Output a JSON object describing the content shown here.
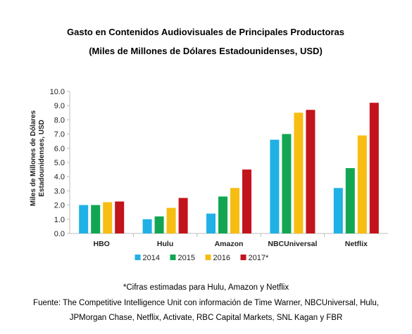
{
  "chart_data": {
    "type": "bar",
    "title": "Gasto en Contenidos Audiovisuales de Principales Productoras",
    "subtitle": "(Miles de Millones de Dólares Estadounidenses, USD)",
    "ylabel_line1": "Miles de Millones de Dólares",
    "ylabel_line2": "Estadounidenses, USD",
    "ylim": [
      0,
      10
    ],
    "yticks": [
      "0.0",
      "1.0",
      "2.0",
      "3.0",
      "4.0",
      "5.0",
      "6.0",
      "7.0",
      "8.0",
      "9.0",
      "10.0"
    ],
    "categories": [
      "HBO",
      "Hulu",
      "Amazon",
      "NBCUniversal",
      "Netflix"
    ],
    "series": [
      {
        "name": "2014",
        "color": "#1fb1e6",
        "values": [
          2.0,
          1.0,
          1.4,
          6.6,
          3.2
        ]
      },
      {
        "name": "2015",
        "color": "#12a652",
        "values": [
          2.0,
          1.2,
          2.6,
          7.0,
          4.6
        ]
      },
      {
        "name": "2016",
        "color": "#f7bd12",
        "values": [
          2.2,
          1.8,
          3.2,
          8.5,
          6.9
        ]
      },
      {
        "name": "2017*",
        "color": "#c2141c",
        "values": [
          2.25,
          2.5,
          4.5,
          8.7,
          9.2
        ]
      }
    ],
    "grid": false,
    "legend_position": "bottom"
  },
  "footnote": {
    "line1": "*Cifras estimadas para Hulu, Amazon y Netflix",
    "line2": "Fuente: The Competitive Intelligence Unit con información de Time Warner, NBCUniversal, Hulu,",
    "line3": "JPMorgan Chase, Netflix, Activate, RBC Capital Markets, SNL Kagan y FBR"
  }
}
